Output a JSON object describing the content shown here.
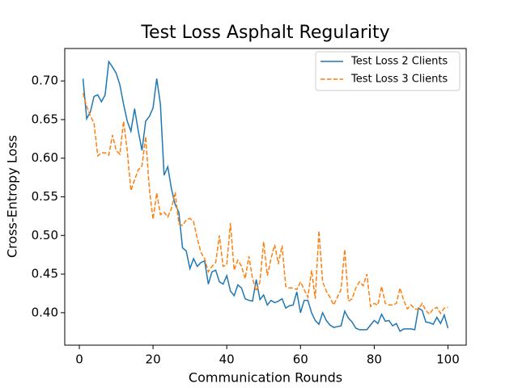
{
  "chart_data": {
    "type": "line",
    "title": "Test Loss Asphalt Regularity",
    "xlabel": "Communication Rounds",
    "ylabel": "Cross-Entropy Loss",
    "x": [
      1,
      2,
      3,
      4,
      5,
      6,
      7,
      8,
      9,
      10,
      11,
      12,
      13,
      14,
      15,
      16,
      17,
      18,
      19,
      20,
      21,
      22,
      23,
      24,
      25,
      26,
      27,
      28,
      29,
      30,
      31,
      32,
      33,
      34,
      35,
      36,
      37,
      38,
      39,
      40,
      41,
      42,
      43,
      44,
      45,
      46,
      47,
      48,
      49,
      50,
      51,
      52,
      53,
      54,
      55,
      56,
      57,
      58,
      59,
      60,
      61,
      62,
      63,
      64,
      65,
      66,
      67,
      68,
      69,
      70,
      71,
      72,
      73,
      74,
      75,
      76,
      77,
      78,
      79,
      80,
      81,
      82,
      83,
      84,
      85,
      86,
      87,
      88,
      89,
      90,
      91,
      92,
      93,
      94,
      95,
      96,
      97,
      98,
      99,
      100
    ],
    "series": [
      {
        "name": "Test Loss 2 Clients",
        "color": "#1f77b4",
        "dash": false,
        "values": [
          0.703,
          0.651,
          0.66,
          0.68,
          0.682,
          0.673,
          0.682,
          0.725,
          0.718,
          0.71,
          0.695,
          0.67,
          0.648,
          0.635,
          0.664,
          0.635,
          0.61,
          0.648,
          0.654,
          0.665,
          0.703,
          0.67,
          0.578,
          0.589,
          0.56,
          0.54,
          0.53,
          0.484,
          0.48,
          0.457,
          0.47,
          0.46,
          0.465,
          0.467,
          0.437,
          0.453,
          0.455,
          0.44,
          0.437,
          0.448,
          0.428,
          0.422,
          0.436,
          0.432,
          0.418,
          0.416,
          0.415,
          0.443,
          0.417,
          0.423,
          0.41,
          0.416,
          0.413,
          0.415,
          0.418,
          0.406,
          0.409,
          0.41,
          0.427,
          0.4,
          0.416,
          0.416,
          0.4,
          0.39,
          0.385,
          0.4,
          0.39,
          0.384,
          0.381,
          0.382,
          0.383,
          0.402,
          0.393,
          0.388,
          0.38,
          0.378,
          0.378,
          0.378,
          0.384,
          0.39,
          0.386,
          0.398,
          0.389,
          0.39,
          0.383,
          0.386,
          0.376,
          0.379,
          0.379,
          0.379,
          0.378,
          0.406,
          0.403,
          0.388,
          0.387,
          0.385,
          0.394,
          0.386,
          0.397,
          0.38
        ]
      },
      {
        "name": "Test Loss 3 Clients",
        "color": "#ff7f0e",
        "dash": true,
        "values": [
          0.684,
          0.667,
          0.655,
          0.645,
          0.603,
          0.607,
          0.607,
          0.604,
          0.63,
          0.61,
          0.605,
          0.648,
          0.61,
          0.558,
          0.572,
          0.585,
          0.59,
          0.628,
          0.56,
          0.521,
          0.555,
          0.527,
          0.53,
          0.524,
          0.535,
          0.556,
          0.515,
          0.513,
          0.52,
          0.522,
          0.518,
          0.496,
          0.478,
          0.47,
          0.453,
          0.46,
          0.465,
          0.5,
          0.46,
          0.462,
          0.516,
          0.455,
          0.468,
          0.46,
          0.444,
          0.473,
          0.444,
          0.428,
          0.44,
          0.492,
          0.448,
          0.47,
          0.488,
          0.463,
          0.487,
          0.434,
          0.432,
          0.432,
          0.43,
          0.44,
          0.43,
          0.42,
          0.455,
          0.418,
          0.506,
          0.44,
          0.428,
          0.42,
          0.41,
          0.42,
          0.43,
          0.482,
          0.415,
          0.418,
          0.432,
          0.44,
          0.435,
          0.45,
          0.408,
          0.412,
          0.41,
          0.434,
          0.412,
          0.41,
          0.41,
          0.412,
          0.432,
          0.416,
          0.405,
          0.41,
          0.405,
          0.404,
          0.412,
          0.403,
          0.398,
          0.405,
          0.407,
          0.399,
          0.406,
          0.407
        ]
      }
    ],
    "xlim": [
      -3.95,
      104.95
    ],
    "ylim": [
      0.358,
      0.742
    ],
    "xticks": [
      0,
      20,
      40,
      60,
      80,
      100
    ],
    "yticks": [
      {
        "value": 0.4,
        "label": "0.40"
      },
      {
        "value": 0.45,
        "label": "0.45"
      },
      {
        "value": 0.5,
        "label": "0.50"
      },
      {
        "value": 0.55,
        "label": "0.55"
      },
      {
        "value": 0.6,
        "label": "0.60"
      },
      {
        "value": 0.65,
        "label": "0.65"
      },
      {
        "value": 0.7,
        "label": "0.70"
      }
    ],
    "legend": "upper right"
  }
}
